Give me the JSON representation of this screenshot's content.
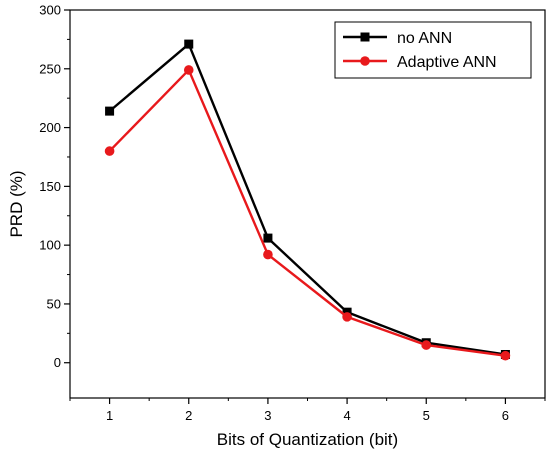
{
  "chart_data": {
    "type": "line",
    "title": "",
    "xlabel": "Bits of Quantization (bit)",
    "ylabel": "PRD (%)",
    "x": [
      1,
      2,
      3,
      4,
      5,
      6
    ],
    "xlim": [
      0.5,
      6.5
    ],
    "ylim": [
      -30,
      300
    ],
    "xticks": [
      "1",
      "2",
      "3",
      "4",
      "5",
      "6"
    ],
    "yticks": [
      "0",
      "50",
      "100",
      "150",
      "200",
      "250",
      "300"
    ],
    "grid": false,
    "legend_position": "top-right",
    "series": [
      {
        "name": "no ANN",
        "color": "#000000",
        "marker": "square",
        "values": [
          214,
          271,
          106,
          43,
          17,
          7
        ]
      },
      {
        "name": "Adaptive ANN",
        "color": "#e8191c",
        "marker": "circle",
        "values": [
          180,
          249,
          92,
          39,
          15,
          6
        ]
      }
    ]
  }
}
